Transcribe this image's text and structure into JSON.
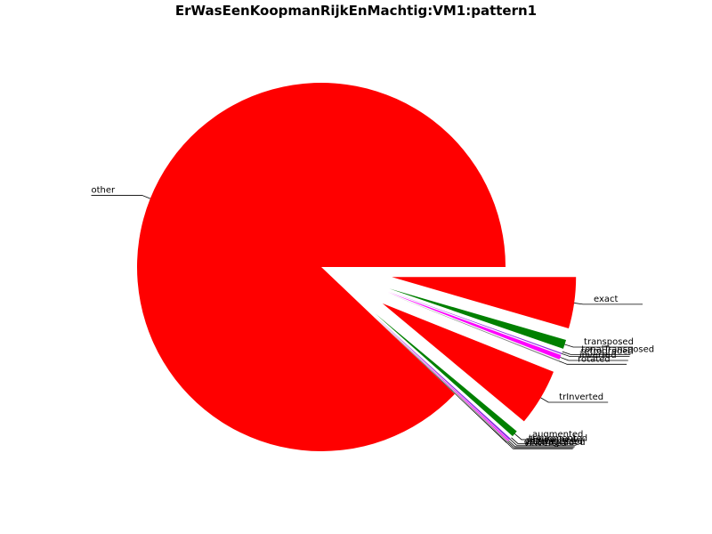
{
  "chart_data": {
    "type": "pie",
    "title": "ErWasEenKoopmanRijkEnMachtig:VM1:pattern1",
    "start_angle_deg": 0,
    "explode": true,
    "slices": [
      {
        "label": "exact",
        "value": 4.5,
        "color": "#ff0000"
      },
      {
        "label": "transposed",
        "value": 0.8,
        "color": "#008000"
      },
      {
        "label": "tonalTransposed",
        "value": 0.15,
        "color": "#ffffff"
      },
      {
        "label": "retrograded",
        "value": 0.1,
        "color": "#8a2be2"
      },
      {
        "label": "inverted",
        "value": 0.4,
        "color": "#ff00ff"
      },
      {
        "label": "rotated",
        "value": 0.1,
        "color": "#808080"
      },
      {
        "label": "trInverted",
        "value": 5.0,
        "color": "#ff0000"
      },
      {
        "label": "augmented",
        "value": 0.55,
        "color": "#008000"
      },
      {
        "label": "trAugmented",
        "value": 0.1,
        "color": "#ffffff"
      },
      {
        "label": "diminished",
        "value": 0.15,
        "color": "#8a2be2"
      },
      {
        "label": "trDiminished",
        "value": 0.1,
        "color": "#ff00ff"
      },
      {
        "label": "vRetrograded",
        "value": 0.08,
        "color": "#808080"
      },
      {
        "label": "vInverted",
        "value": 0.08,
        "color": "#000000"
      },
      {
        "label": "other",
        "value": 87.9,
        "color": "#ff0000"
      }
    ]
  }
}
